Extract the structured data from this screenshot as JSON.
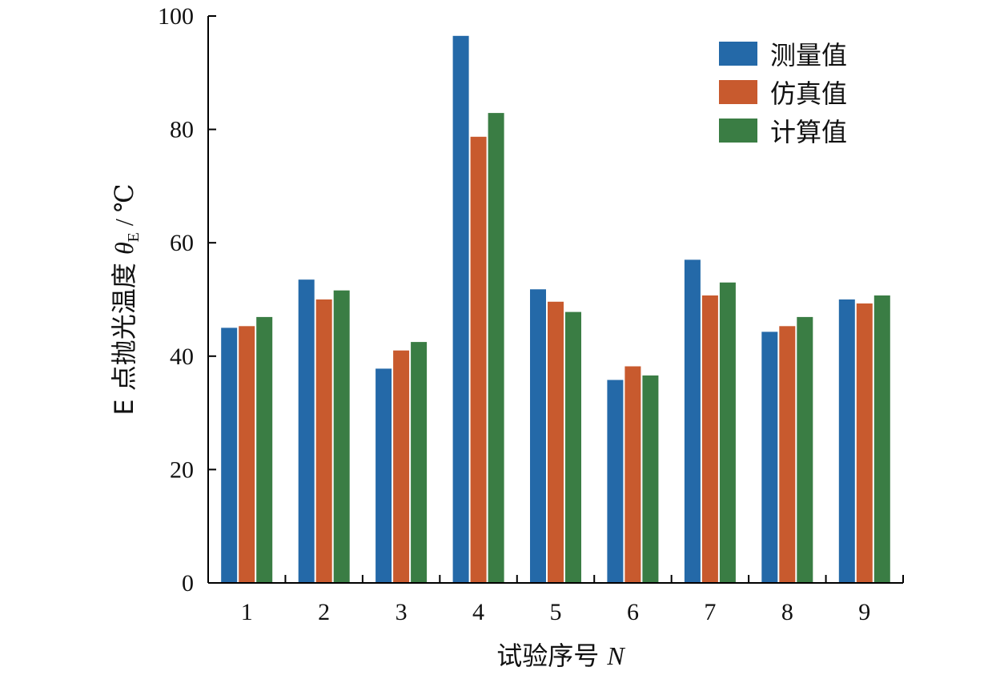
{
  "chart_data": {
    "type": "bar",
    "categories": [
      "1",
      "2",
      "3",
      "4",
      "5",
      "6",
      "7",
      "8",
      "9"
    ],
    "series": [
      {
        "name": "测量值",
        "color": "#2469a8",
        "values": [
          45.0,
          53.5,
          37.8,
          96.5,
          51.8,
          35.8,
          57.0,
          44.3,
          50.0
        ]
      },
      {
        "name": "仿真值",
        "color": "#c85a2e",
        "values": [
          45.3,
          50.0,
          41.0,
          78.7,
          49.6,
          38.2,
          50.7,
          45.3,
          49.3
        ]
      },
      {
        "name": "计算值",
        "color": "#3a7d44",
        "values": [
          46.9,
          51.6,
          42.5,
          82.9,
          47.8,
          36.6,
          53.0,
          46.9,
          50.7
        ]
      }
    ],
    "xlabel": {
      "prefix": "试验序号 ",
      "symbol": "N"
    },
    "ylabel": {
      "prefix": "E 点抛光温度 ",
      "symbol": "θ",
      "subscript": "E",
      "unit": " / ℃"
    },
    "yticks": [
      "0",
      "20",
      "40",
      "60",
      "80",
      "100"
    ],
    "ylim": [
      0,
      100
    ],
    "grid": false,
    "legend_position": "top-right"
  }
}
